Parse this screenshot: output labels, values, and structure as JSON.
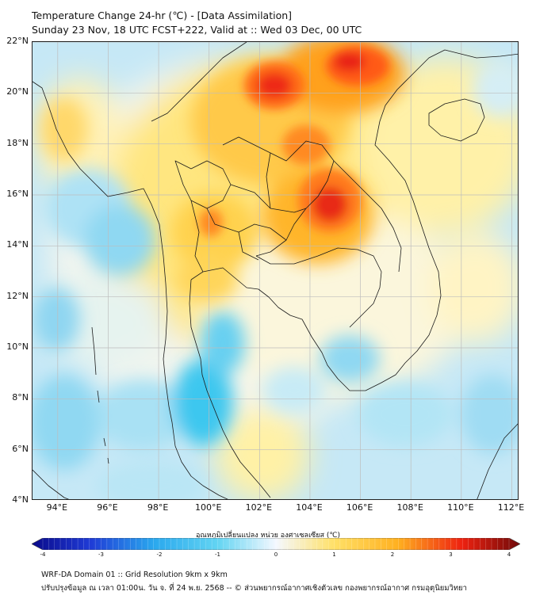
{
  "title": {
    "line1": "Temperature Change 24-hr (℃) - [Data Assimilation]",
    "line2": "Sunday 23 Nov, 18 UTC FCST+222, Valid at :: Wed 03 Dec, 00 UTC"
  },
  "axes": {
    "lat_labels": [
      "22°N",
      "20°N",
      "18°N",
      "16°N",
      "14°N",
      "12°N",
      "10°N",
      "8°N",
      "6°N",
      "4°N"
    ],
    "lon_labels": [
      "94°E",
      "96°E",
      "98°E",
      "100°E",
      "102°E",
      "104°E",
      "106°E",
      "108°E",
      "110°E",
      "112°E"
    ],
    "lat_range": [
      4,
      22
    ],
    "lon_range": [
      93,
      112.3
    ]
  },
  "colorbar": {
    "title": "อุณหภูมิเปลี่ยนแปลง หน่วย องศาเซลเซียส (℃)",
    "ticks": [
      "-4",
      "-3",
      "-2",
      "-1",
      "0",
      "1",
      "2",
      "3",
      "4"
    ],
    "range": [
      -4,
      4
    ]
  },
  "footer": {
    "line1": "WRF-DA Domain 01 :: Grid Resolution 9km x 9km",
    "line2": "ปรับปรุงข้อมูล ณ เวลา 01:00น. วัน จ. ที่ 24 พ.ย. 2568 -- © ส่วนพยากรณ์อากาศเชิงตัวเลข กองพยากรณ์อากาศ กรมอุตุนิยมวิทยา"
  },
  "colors": {
    "cold_extreme": "#0a0a8a",
    "cool": "#33c6ee",
    "neutral": "#f4f8ff",
    "warm": "#ffe066",
    "hot": "#ff9a1a",
    "hottest": "#ee1c10",
    "coastline": "#1a1a1a",
    "grid": "#bdbdbd"
  }
}
